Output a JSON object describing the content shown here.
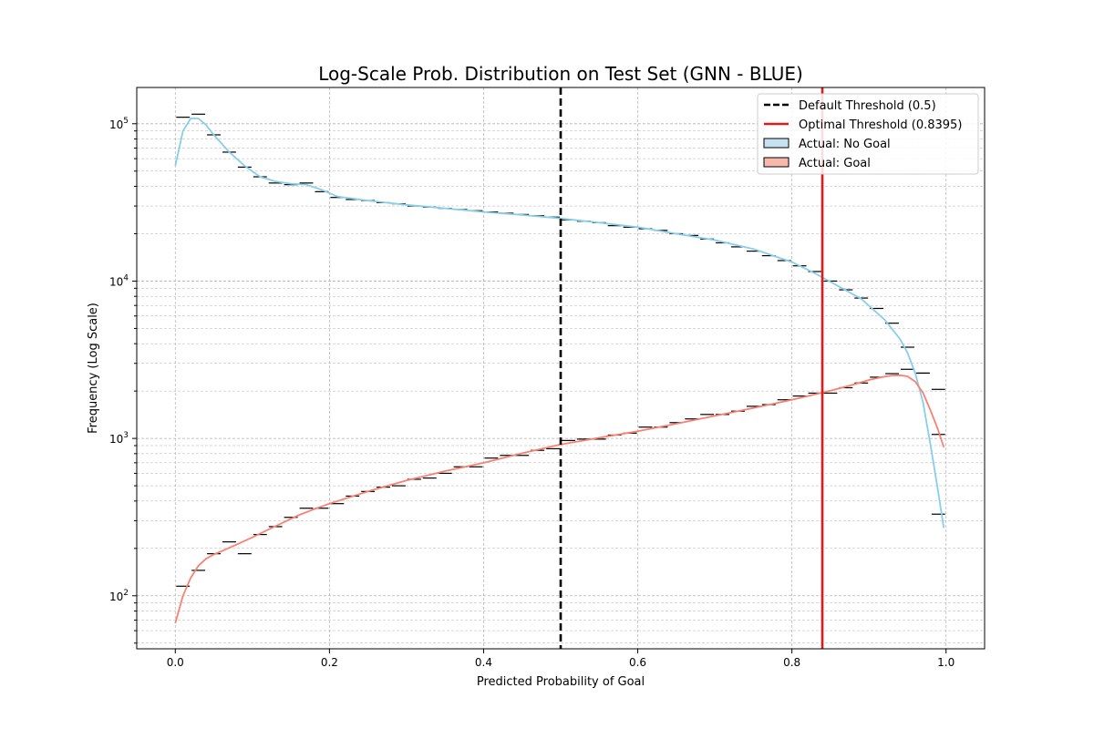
{
  "chart_data": {
    "type": "histogram",
    "title": "Log-Scale Prob. Distribution on Test Set (GNN - BLUE)",
    "xlabel": "Predicted Probability of Goal",
    "ylabel": "Frequency (Log Scale)",
    "xlim": [
      -0.05,
      1.05
    ],
    "ylim": [
      46,
      170000
    ],
    "yscale": "log",
    "grid": true,
    "legend_position": "upper-right",
    "x_ticks": [
      0.0,
      0.2,
      0.4,
      0.6,
      0.8,
      1.0
    ],
    "x_tick_labels": [
      "0.0",
      "0.2",
      "0.4",
      "0.6",
      "0.8",
      "1.0"
    ],
    "y_ticks": [
      100,
      1000,
      10000,
      100000
    ],
    "y_tick_labels": [
      {
        "base": "10",
        "exp": "2"
      },
      {
        "base": "10",
        "exp": "3"
      },
      {
        "base": "10",
        "exp": "4"
      },
      {
        "base": "10",
        "exp": "5"
      }
    ],
    "bin_width": 0.02,
    "bin_starts": [
      0.0,
      0.02,
      0.04,
      0.06,
      0.08,
      0.1,
      0.12,
      0.14,
      0.16,
      0.18,
      0.2,
      0.22,
      0.24,
      0.26,
      0.28,
      0.3,
      0.32,
      0.34,
      0.36,
      0.38,
      0.4,
      0.42,
      0.44,
      0.46,
      0.48,
      0.5,
      0.52,
      0.54,
      0.56,
      0.58,
      0.6,
      0.62,
      0.64,
      0.66,
      0.68,
      0.7,
      0.72,
      0.74,
      0.76,
      0.78,
      0.8,
      0.82,
      0.84,
      0.86,
      0.88,
      0.9,
      0.92,
      0.94,
      0.96,
      0.98
    ],
    "series": [
      {
        "name": "Actual: No Goal",
        "color": "#87ceeb",
        "fill": "#c6e2f2",
        "counts": [
          110000,
          115000,
          85000,
          66000,
          53000,
          46000,
          42000,
          41000,
          42000,
          37000,
          34000,
          33000,
          32500,
          31500,
          31000,
          30000,
          29500,
          29000,
          28500,
          28000,
          27500,
          27000,
          26500,
          26000,
          25500,
          24500,
          24000,
          23500,
          22500,
          22000,
          21500,
          21000,
          20000,
          19500,
          18500,
          17500,
          16500,
          15500,
          14500,
          13500,
          12500,
          11500,
          10000,
          8800,
          7800,
          6700,
          5400,
          3800,
          2600,
          330
        ],
        "kde_x": [
          0.0,
          0.01,
          0.02,
          0.03,
          0.04,
          0.05,
          0.07,
          0.09,
          0.11,
          0.13,
          0.15,
          0.17,
          0.19,
          0.21,
          0.25,
          0.3,
          0.35,
          0.4,
          0.45,
          0.5,
          0.55,
          0.6,
          0.65,
          0.7,
          0.75,
          0.8,
          0.83,
          0.86,
          0.89,
          0.92,
          0.94,
          0.95,
          0.96,
          0.97,
          0.98,
          0.99,
          0.997
        ],
        "kde_y": [
          54000,
          90000,
          108000,
          108000,
          98000,
          85000,
          66000,
          54000,
          46000,
          43000,
          41500,
          41000,
          38000,
          34500,
          32500,
          30500,
          29000,
          27500,
          26300,
          25000,
          23500,
          22000,
          20000,
          18200,
          16000,
          13200,
          11200,
          9300,
          7700,
          5700,
          4300,
          3500,
          2600,
          1700,
          900,
          450,
          270
        ]
      },
      {
        "name": "Actual: Goal",
        "color": "#fa8072",
        "fill": "#f8b9ac",
        "counts": [
          115,
          145,
          185,
          220,
          185,
          245,
          275,
          315,
          360,
          360,
          385,
          430,
          460,
          490,
          500,
          550,
          560,
          600,
          660,
          660,
          750,
          780,
          780,
          840,
          860,
          970,
          990,
          990,
          1050,
          1080,
          1180,
          1180,
          1260,
          1330,
          1420,
          1420,
          1490,
          1600,
          1640,
          1760,
          1860,
          1940,
          1940,
          2100,
          2250,
          2450,
          2580,
          2750,
          2600,
          2050
        ],
        "extra_bins": [
          {
            "x0": 0.98,
            "count": 1060
          }
        ],
        "kde_x": [
          0.0,
          0.01,
          0.02,
          0.03,
          0.04,
          0.05,
          0.06,
          0.08,
          0.1,
          0.12,
          0.14,
          0.16,
          0.18,
          0.2,
          0.25,
          0.3,
          0.35,
          0.4,
          0.45,
          0.5,
          0.55,
          0.6,
          0.65,
          0.7,
          0.75,
          0.8,
          0.85,
          0.88,
          0.9,
          0.92,
          0.93,
          0.94,
          0.95,
          0.96,
          0.97,
          0.98,
          0.99,
          0.997
        ],
        "kde_y": [
          67,
          100,
          130,
          155,
          172,
          183,
          192,
          212,
          235,
          262,
          292,
          325,
          355,
          385,
          460,
          540,
          620,
          700,
          805,
          915,
          1010,
          1110,
          1240,
          1390,
          1560,
          1760,
          2010,
          2200,
          2350,
          2470,
          2510,
          2520,
          2480,
          2300,
          1950,
          1500,
          1120,
          880
        ]
      }
    ],
    "thresholds": [
      {
        "name": "Default Threshold (0.5)",
        "x": 0.5,
        "color": "#000000",
        "style": "dashed"
      },
      {
        "name": "Optimal Threshold (0.8395)",
        "x": 0.8395,
        "color": "#e31a1c",
        "style": "solid"
      }
    ],
    "legend": [
      {
        "label": "Default Threshold (0.5)",
        "kind": "dashed-line",
        "color": "#000000"
      },
      {
        "label": "Optimal Threshold (0.8395)",
        "kind": "solid-line",
        "color": "#e31a1c"
      },
      {
        "label": "Actual: No Goal",
        "kind": "patch",
        "color": "#c6e2f2"
      },
      {
        "label": "Actual: Goal",
        "kind": "patch",
        "color": "#f8b9ac"
      }
    ]
  }
}
